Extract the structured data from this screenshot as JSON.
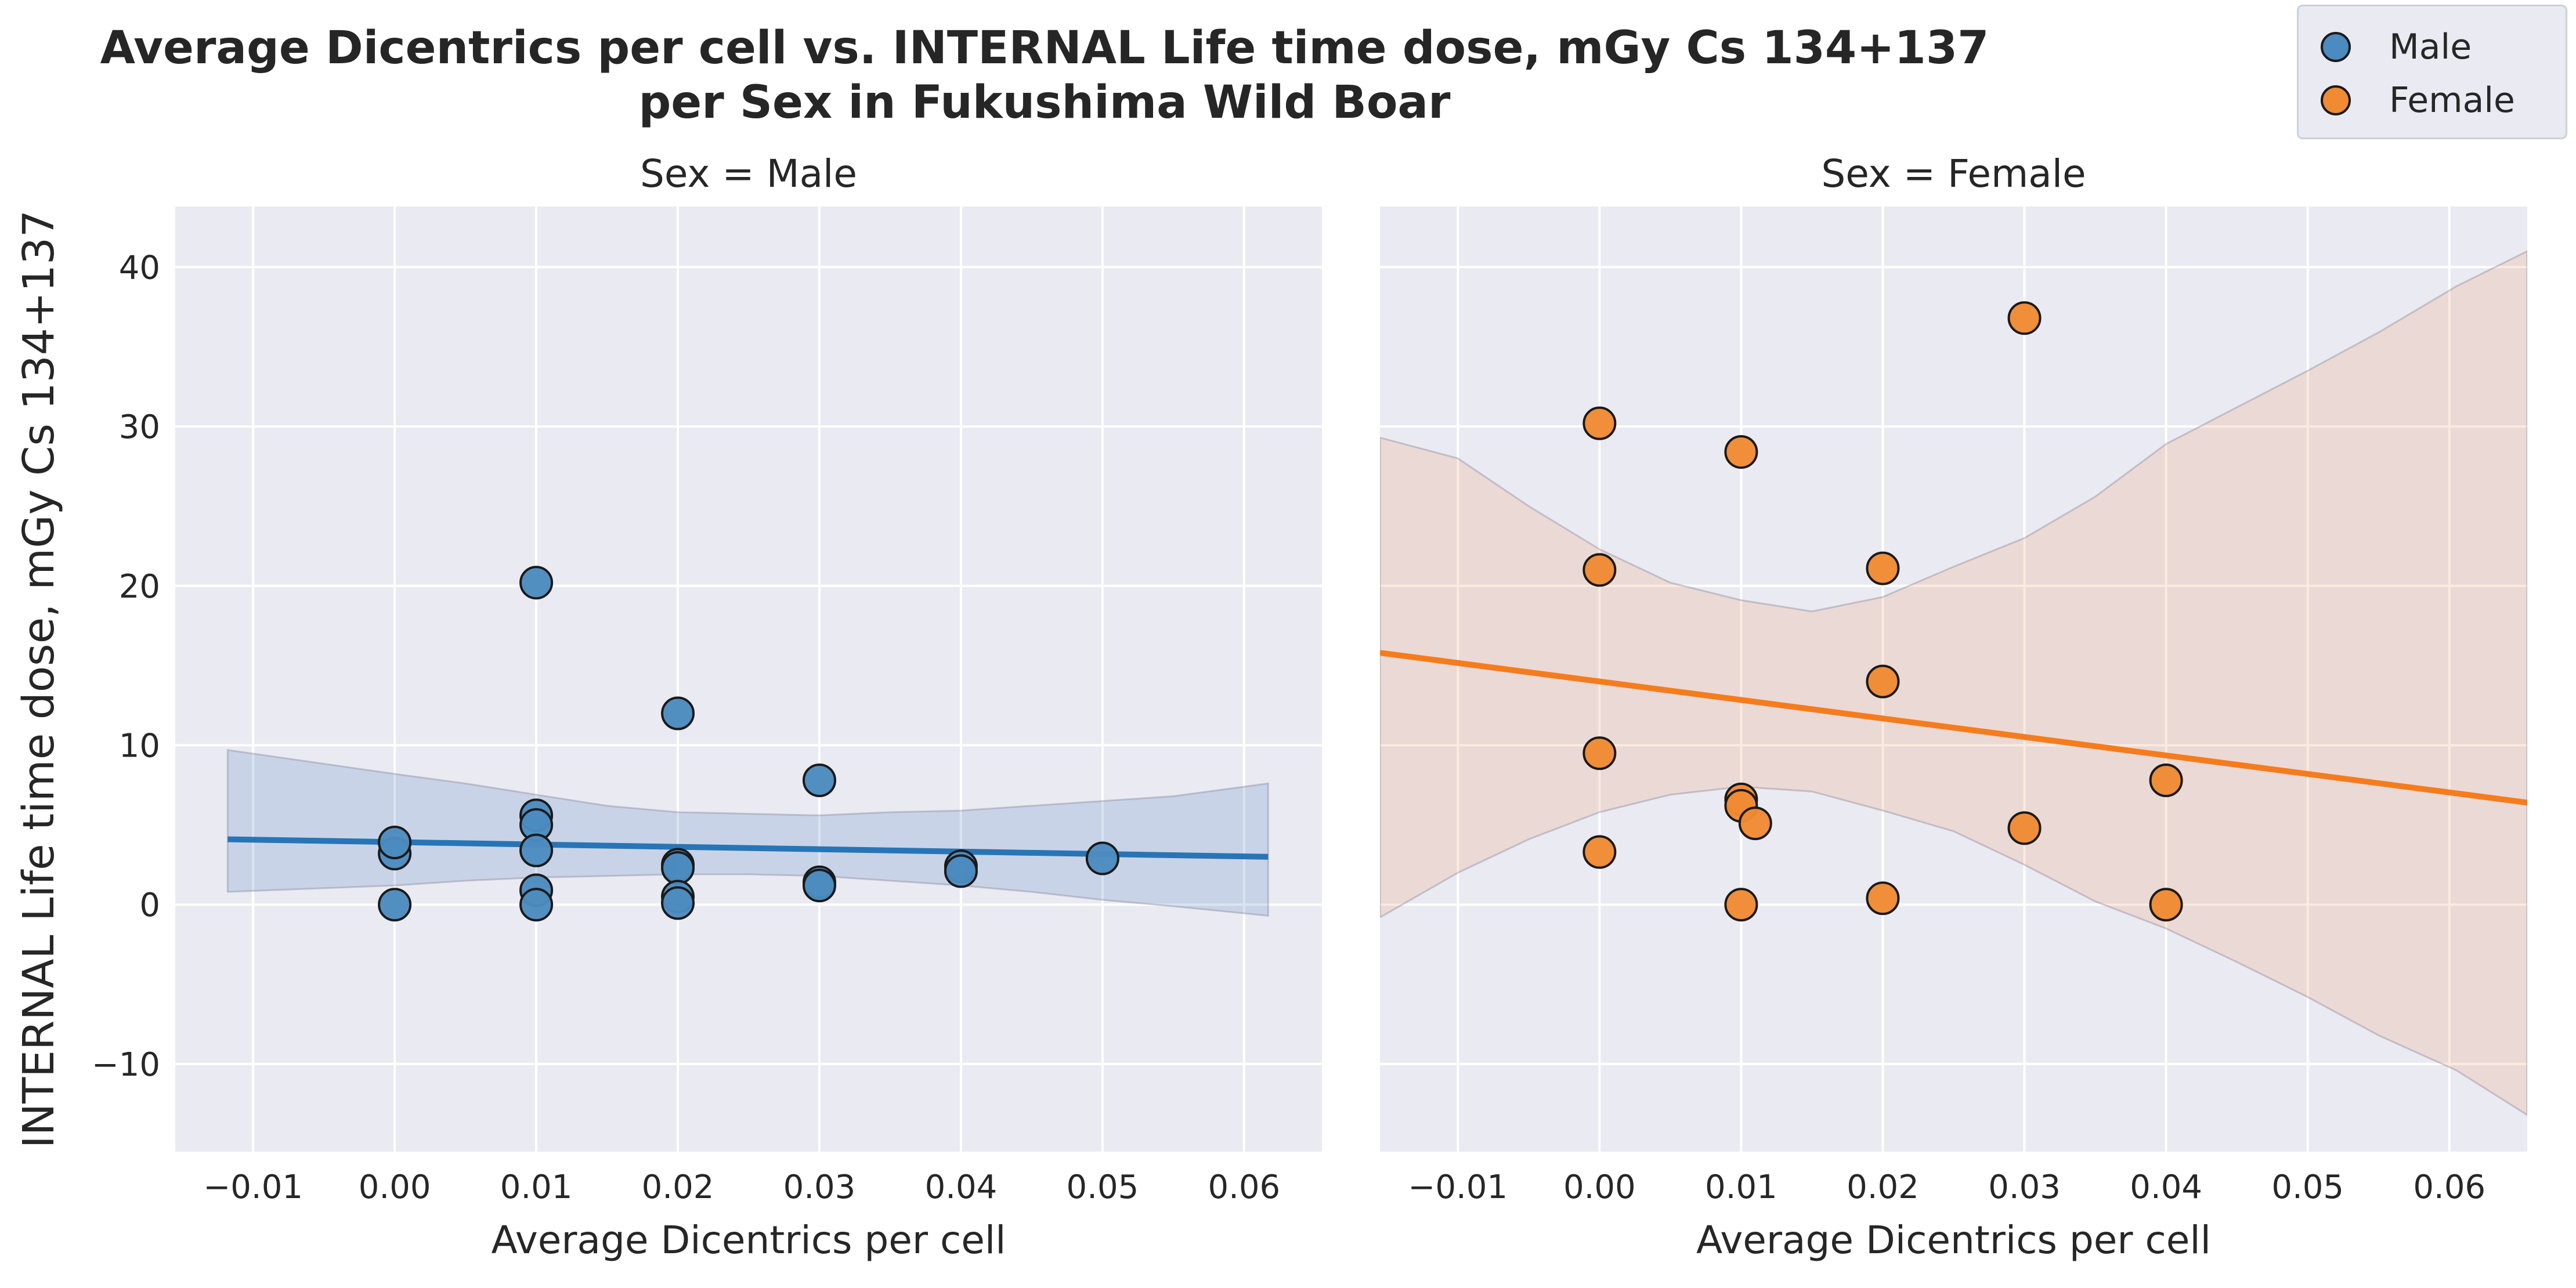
{
  "title_lines": [
    "Average Dicentrics per cell vs. INTERNAL Life time dose, mGy Cs 134+137",
    "per Sex in Fukushima Wild Boar"
  ],
  "legend": [
    {
      "label": "Male",
      "color": "#4c8bbf"
    },
    {
      "label": "Female",
      "color": "#f08a33"
    }
  ],
  "colors": {
    "panel_bg": "#eaeaf2",
    "grid": "#ffffff",
    "marker_edge": "#1a1a1a"
  },
  "chart_data": [
    {
      "type": "scatter",
      "panel_title": "Sex = Male",
      "xlabel": "Average Dicentrics per cell",
      "ylabel": "INTERNAL Life time dose, mGy Cs 134+137",
      "xlim": [
        -0.0155,
        0.0655
      ],
      "ylim": [
        -15.5,
        43.8
      ],
      "xticks": [
        -0.01,
        0.0,
        0.01,
        0.02,
        0.03,
        0.04,
        0.05,
        0.06
      ],
      "xtick_labels": [
        "−0.01",
        "0.00",
        "0.01",
        "0.02",
        "0.03",
        "0.04",
        "0.05",
        "0.06"
      ],
      "yticks": [
        -10,
        0,
        10,
        20,
        30,
        40
      ],
      "ytick_labels": [
        "−10",
        "0",
        "10",
        "20",
        "30",
        "40"
      ],
      "grid": true,
      "series": [
        {
          "name": "Male",
          "color": "#4c8bbf",
          "line_color": "#2775b6",
          "band_color": "rgba(86,132,190,0.22)",
          "points": [
            [
              0.0,
              0.0
            ],
            [
              0.0,
              3.2
            ],
            [
              0.0,
              3.9
            ],
            [
              0.01,
              20.2
            ],
            [
              0.01,
              5.6
            ],
            [
              0.01,
              5.0
            ],
            [
              0.01,
              3.4
            ],
            [
              0.01,
              0.9
            ],
            [
              0.01,
              0.0
            ],
            [
              0.02,
              12.0
            ],
            [
              0.02,
              2.5
            ],
            [
              0.02,
              2.3
            ],
            [
              0.02,
              0.5
            ],
            [
              0.02,
              0.1
            ],
            [
              0.03,
              7.8
            ],
            [
              0.03,
              1.4
            ],
            [
              0.03,
              1.2
            ],
            [
              0.04,
              2.4
            ],
            [
              0.04,
              2.1
            ],
            [
              0.05,
              2.9
            ]
          ],
          "regression": {
            "x": [
              -0.0118,
              0.0617
            ],
            "y": [
              4.1,
              3.0
            ]
          },
          "band": {
            "x": [
              -0.0118,
              0.0,
              0.005,
              0.01,
              0.015,
              0.02,
              0.025,
              0.03,
              0.035,
              0.04,
              0.045,
              0.05,
              0.055,
              0.0617
            ],
            "upper": [
              9.7,
              8.2,
              7.6,
              6.9,
              6.2,
              5.8,
              5.7,
              5.6,
              5.8,
              5.9,
              6.2,
              6.5,
              6.8,
              7.6
            ],
            "lower": [
              0.8,
              1.2,
              1.5,
              1.7,
              1.8,
              1.9,
              1.9,
              1.8,
              1.5,
              1.2,
              0.8,
              0.3,
              -0.1,
              -0.7
            ]
          }
        }
      ]
    },
    {
      "type": "scatter",
      "panel_title": "Sex = Female",
      "xlabel": "Average Dicentrics per cell",
      "ylabel": "",
      "xlim": [
        -0.0155,
        0.0655
      ],
      "ylim": [
        -15.5,
        43.8
      ],
      "xticks": [
        -0.01,
        0.0,
        0.01,
        0.02,
        0.03,
        0.04,
        0.05,
        0.06
      ],
      "xtick_labels": [
        "−0.01",
        "0.00",
        "0.01",
        "0.02",
        "0.03",
        "0.04",
        "0.05",
        "0.06"
      ],
      "yticks": [
        -10,
        0,
        10,
        20,
        30,
        40
      ],
      "ytick_labels": [],
      "grid": true,
      "series": [
        {
          "name": "Female",
          "color": "#f08a33",
          "line_color": "#f57c1c",
          "band_color": "rgba(235,160,110,0.22)",
          "points": [
            [
              0.0,
              30.2
            ],
            [
              0.0,
              21.0
            ],
            [
              0.0,
              9.5
            ],
            [
              0.0,
              3.3
            ],
            [
              0.01,
              28.4
            ],
            [
              0.01,
              6.6
            ],
            [
              0.01,
              6.2
            ],
            [
              0.011,
              5.1
            ],
            [
              0.01,
              0.0
            ],
            [
              0.02,
              21.1
            ],
            [
              0.02,
              14.0
            ],
            [
              0.02,
              0.4
            ],
            [
              0.03,
              36.8
            ],
            [
              0.03,
              4.8
            ],
            [
              0.04,
              7.8
            ],
            [
              0.04,
              0.0
            ]
          ],
          "regression": {
            "x": [
              -0.0155,
              0.0655
            ],
            "y": [
              15.8,
              6.4
            ]
          },
          "band": {
            "x": [
              -0.0155,
              -0.01,
              -0.005,
              0.0,
              0.005,
              0.01,
              0.015,
              0.02,
              0.025,
              0.03,
              0.035,
              0.04,
              0.045,
              0.05,
              0.055,
              0.0605,
              0.0655
            ],
            "upper": [
              29.3,
              28.0,
              25.0,
              22.3,
              20.2,
              19.1,
              18.4,
              19.3,
              21.2,
              23.0,
              25.6,
              28.9,
              31.2,
              33.5,
              35.9,
              38.8,
              41.0
            ],
            "lower": [
              -0.8,
              2.0,
              4.1,
              5.8,
              6.9,
              7.4,
              7.1,
              5.9,
              4.6,
              2.5,
              0.2,
              -1.5,
              -3.6,
              -5.8,
              -8.2,
              -10.4,
              -13.2
            ]
          }
        }
      ]
    }
  ]
}
